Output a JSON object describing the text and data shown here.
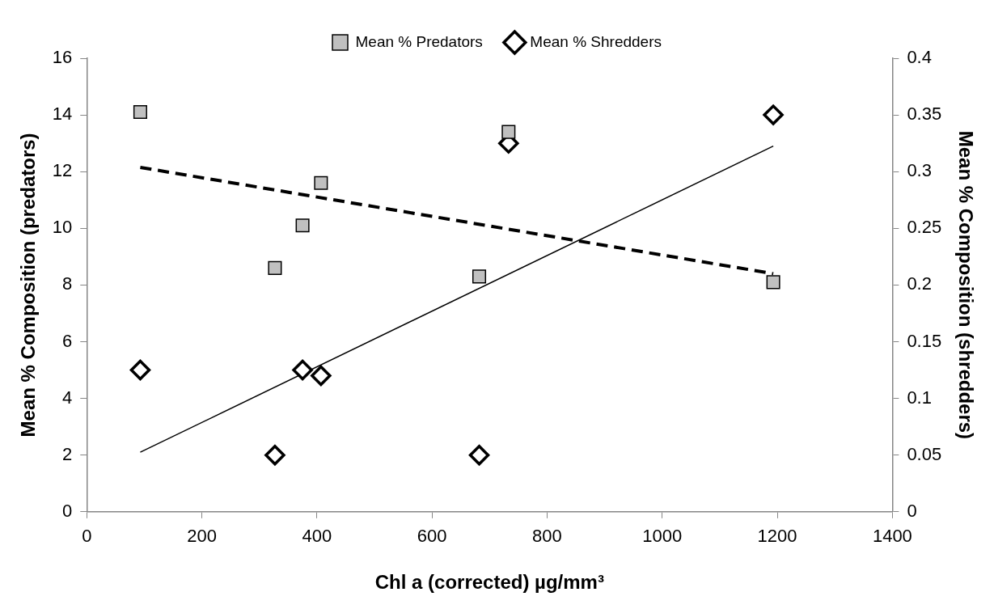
{
  "chart_data": {
    "type": "scatter",
    "xlabel": "Chl a (corrected) µg/mm³",
    "ylabel": "Mean % Composition (predators)",
    "y2label": "Mean % Composition (shredders)",
    "xlim": [
      0,
      1400
    ],
    "xticks": [
      0,
      200,
      400,
      600,
      800,
      1000,
      1200,
      1400
    ],
    "ylim": [
      0,
      16
    ],
    "yticks": [
      0,
      2,
      4,
      6,
      8,
      10,
      12,
      14,
      16
    ],
    "y2lim": [
      0,
      0.4
    ],
    "y2ticks": [
      0,
      0.05,
      0.1,
      0.15,
      0.2,
      0.25,
      0.3,
      0.35,
      0.4
    ],
    "grid": false,
    "legend": "top",
    "series": [
      {
        "name": "Mean % Predators",
        "type": "scatter",
        "marker": "square",
        "color": "#c0c0c0",
        "x": [
          93,
          327,
          375,
          407,
          682,
          733,
          1193
        ],
        "values": [
          14.1,
          8.6,
          10.1,
          11.6,
          8.3,
          13.4,
          8.1
        ]
      },
      {
        "name": "Mean % Shredders",
        "type": "scatter",
        "marker": "diamond",
        "color": "#ffffff",
        "axis": "y2",
        "x": [
          93,
          327,
          375,
          407,
          682,
          733,
          1193
        ],
        "values": [
          0.125,
          0.05,
          0.125,
          0.12,
          0.05,
          0.325,
          0.35
        ]
      },
      {
        "type": "line",
        "marker": "none",
        "line_style": "dashed",
        "color": "#000000",
        "x": [
          93,
          1193
        ],
        "values": [
          12.15,
          8.4
        ]
      },
      {
        "type": "line",
        "marker": "none",
        "line_style": "solid",
        "color": "#000000",
        "axis": "y2",
        "x": [
          93,
          1193
        ],
        "values": [
          0.0525,
          0.3225
        ]
      }
    ]
  }
}
